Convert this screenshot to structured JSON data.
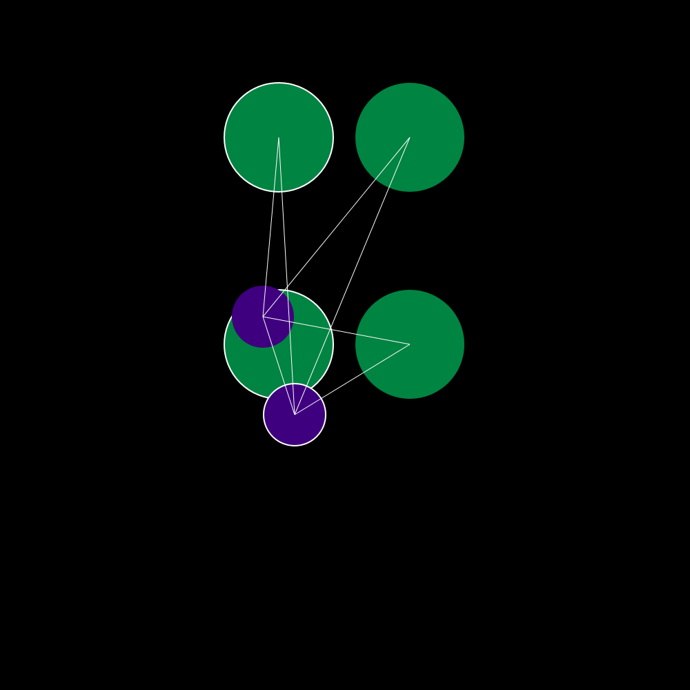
{
  "colors": {
    "background": "#000000",
    "large_node": "#008442",
    "small_node": "#3f007f",
    "edge": "#ffffff",
    "outline": "#ffffff"
  },
  "nodes": [
    {
      "id": "large-top-left",
      "kind": "large",
      "outlined": true
    },
    {
      "id": "large-top-right",
      "kind": "large",
      "outlined": false
    },
    {
      "id": "large-mid-left",
      "kind": "large",
      "outlined": true
    },
    {
      "id": "large-mid-right",
      "kind": "large",
      "outlined": false
    },
    {
      "id": "small-upper",
      "kind": "small",
      "outlined": false
    },
    {
      "id": "small-lower",
      "kind": "small",
      "outlined": true
    }
  ],
  "edges": [
    [
      "small-upper",
      "large-top-left"
    ],
    [
      "small-upper",
      "large-top-right"
    ],
    [
      "small-upper",
      "large-mid-right"
    ],
    [
      "small-upper",
      "small-lower"
    ],
    [
      "small-lower",
      "large-top-left"
    ],
    [
      "small-lower",
      "large-top-right"
    ],
    [
      "small-lower",
      "large-mid-right"
    ]
  ]
}
